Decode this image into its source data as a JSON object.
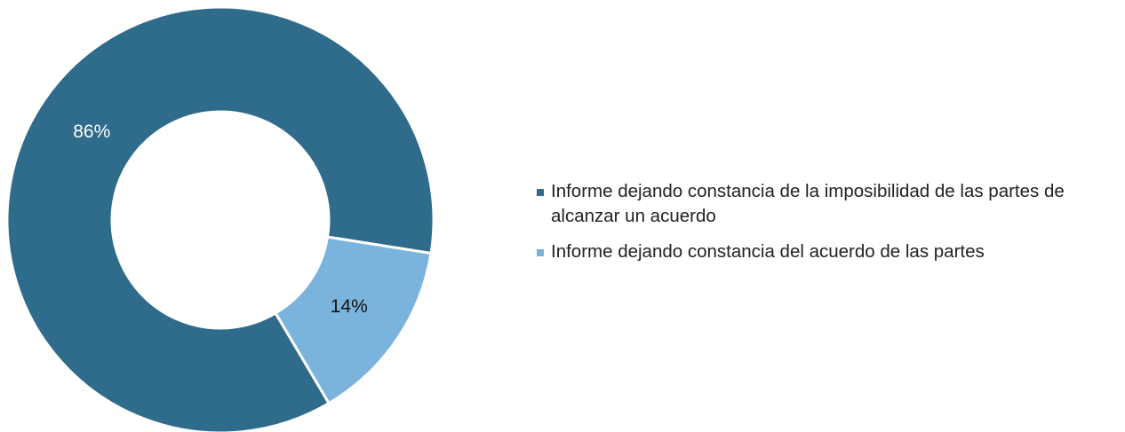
{
  "chart_data": {
    "type": "donut",
    "categories": [
      "Informe dejando constancia de la imposibilidad de las partes de alcanzar un acuerdo",
      "Informe dejando constancia del acuerdo de las partes"
    ],
    "values": [
      86,
      14
    ],
    "value_labels": [
      "86%",
      "14%"
    ],
    "colors": [
      "#2f6b8a",
      "#7ab4dc"
    ],
    "legend": "right"
  }
}
